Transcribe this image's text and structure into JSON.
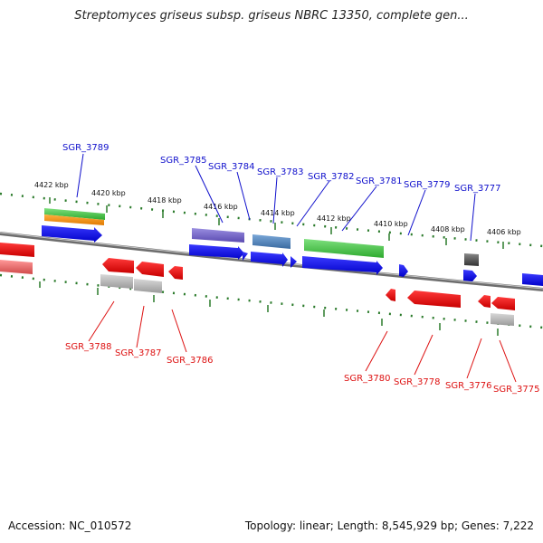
{
  "title": "Streptomyces griseus subsp. griseus NBRC 13350, complete gen...",
  "footer": {
    "accession": "Accession: NC_010572",
    "summary": "Topology: linear; Length: 8,545,929 bp; Genes: 7,222"
  },
  "ruler_labels": [
    "4422 kbp",
    "4420 kbp",
    "4418 kbp",
    "4416 kbp",
    "4414 kbp",
    "4412 kbp",
    "4410 kbp",
    "4408 kbp",
    "4406 kbp"
  ],
  "genes_top": [
    "SGR_3789",
    "SGR_3785",
    "SGR_3784",
    "SGR_3783",
    "SGR_3782",
    "SGR_3781",
    "SGR_3779",
    "SGR_3777"
  ],
  "genes_bottom": [
    "SGR_3788",
    "SGR_3787",
    "SGR_3786",
    "SGR_3780",
    "SGR_3778",
    "SGR_3776",
    "SGR_3775"
  ],
  "colors": {
    "top_label": "#1010cc",
    "bottom_label": "#dd1111",
    "gene_forward": "#1a1aee",
    "gene_reverse": "#ee1111",
    "ruler_tick": "#2a7a2a",
    "backbone": "#777777"
  }
}
